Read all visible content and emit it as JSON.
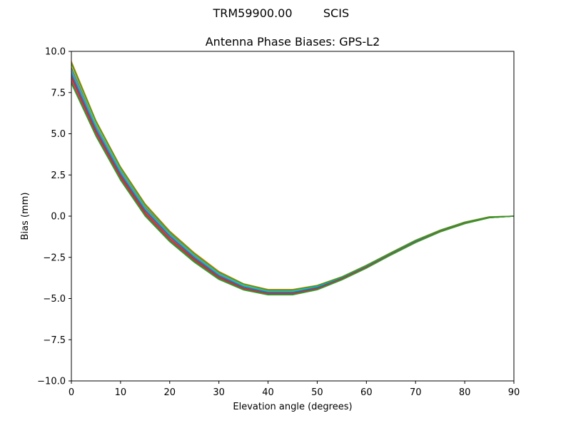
{
  "figure": {
    "suptitle_antenna": "TRM59900.00",
    "suptitle_radome": "SCIS"
  },
  "chart_data": {
    "type": "line",
    "title": "Antenna Phase Biases: GPS-L2",
    "xlabel": "Elevation angle (degrees)",
    "ylabel": "Bias (mm)",
    "xlim": [
      0,
      90
    ],
    "ylim": [
      -10,
      10
    ],
    "xticks": [
      0,
      10,
      20,
      30,
      40,
      50,
      60,
      70,
      80,
      90
    ],
    "xtick_labels": [
      "0",
      "10",
      "20",
      "30",
      "40",
      "50",
      "60",
      "70",
      "80",
      "90"
    ],
    "yticks": [
      10,
      7.5,
      5,
      2.5,
      0,
      -2.5,
      -5,
      -7.5,
      -10
    ],
    "ytick_labels": [
      "10.0",
      "7.5",
      "5.0",
      "2.5",
      "0.0",
      "−2.5",
      "−5.0",
      "−7.5",
      "−10.0"
    ],
    "grid": false,
    "legend": "none",
    "x": [
      0,
      5,
      10,
      15,
      20,
      25,
      30,
      35,
      40,
      45,
      50,
      55,
      60,
      65,
      70,
      75,
      80,
      85,
      90
    ],
    "series": [
      {
        "color": "#2ca02c",
        "values": [
          8.1,
          4.9,
          2.2,
          0.05,
          -1.5,
          -2.75,
          -3.8,
          -4.45,
          -4.75,
          -4.75,
          -4.45,
          -3.85,
          -3.15,
          -2.35,
          -1.6,
          -0.95,
          -0.45,
          -0.1,
          0.0
        ]
      },
      {
        "color": "#d62728",
        "values": [
          8.5,
          5.2,
          2.5,
          0.3,
          -1.25,
          -2.55,
          -3.65,
          -4.32,
          -4.65,
          -4.65,
          -4.35,
          -3.78,
          -3.08,
          -2.3,
          -1.55,
          -0.92,
          -0.42,
          -0.08,
          0.0
        ]
      },
      {
        "color": "#9467bd",
        "values": [
          8.8,
          5.4,
          2.65,
          0.45,
          -1.15,
          -2.45,
          -3.55,
          -4.25,
          -4.6,
          -4.6,
          -4.3,
          -3.75,
          -3.05,
          -2.27,
          -1.52,
          -0.9,
          -0.4,
          -0.07,
          0.0
        ]
      },
      {
        "color": "#8c564b",
        "values": [
          9.0,
          5.55,
          2.8,
          0.55,
          -1.05,
          -2.35,
          -3.47,
          -4.2,
          -4.55,
          -4.55,
          -4.27,
          -3.72,
          -3.02,
          -2.25,
          -1.5,
          -0.88,
          -0.38,
          -0.06,
          0.0
        ]
      },
      {
        "color": "#e377c2",
        "values": [
          8.3,
          5.05,
          2.35,
          0.15,
          -1.4,
          -2.65,
          -3.72,
          -4.4,
          -4.72,
          -4.72,
          -4.42,
          -3.82,
          -3.12,
          -2.33,
          -1.58,
          -0.94,
          -0.44,
          -0.09,
          0.0
        ]
      },
      {
        "color": "#7f7f7f",
        "values": [
          8.7,
          5.3,
          2.6,
          0.4,
          -1.2,
          -2.5,
          -3.6,
          -4.28,
          -4.62,
          -4.62,
          -4.32,
          -3.76,
          -3.06,
          -2.28,
          -1.53,
          -0.91,
          -0.41,
          -0.07,
          0.0
        ]
      },
      {
        "color": "#bcbd22",
        "values": [
          9.2,
          5.65,
          2.9,
          0.65,
          -0.98,
          -2.3,
          -3.42,
          -4.15,
          -4.5,
          -4.5,
          -4.24,
          -3.7,
          -3.0,
          -2.23,
          -1.48,
          -0.86,
          -0.37,
          -0.05,
          0.0
        ]
      },
      {
        "color": "#17becf",
        "values": [
          8.9,
          5.5,
          2.75,
          0.5,
          -1.1,
          -2.4,
          -3.5,
          -4.22,
          -4.57,
          -4.57,
          -4.28,
          -3.73,
          -3.03,
          -2.26,
          -1.51,
          -0.89,
          -0.39,
          -0.06,
          0.0
        ]
      },
      {
        "color": "#1f77b4",
        "values": [
          8.6,
          5.25,
          2.55,
          0.35,
          -1.22,
          -2.52,
          -3.62,
          -4.3,
          -4.63,
          -4.63,
          -4.33,
          -3.77,
          -3.07,
          -2.29,
          -1.54,
          -0.91,
          -0.41,
          -0.08,
          0.0
        ]
      },
      {
        "color": "#ff7f0e",
        "values": [
          9.4,
          5.8,
          3.0,
          0.75,
          -0.9,
          -2.22,
          -3.35,
          -4.1,
          -4.45,
          -4.45,
          -4.2,
          -3.68,
          -2.98,
          -2.21,
          -1.46,
          -0.85,
          -0.36,
          -0.04,
          0.0
        ]
      },
      {
        "color": "#2ca02c",
        "values": [
          9.3,
          5.75,
          2.95,
          0.7,
          -0.95,
          -2.27,
          -3.4,
          -4.12,
          -4.48,
          -4.48,
          -4.22,
          -3.69,
          -2.99,
          -2.22,
          -1.47,
          -0.85,
          -0.36,
          -0.05,
          0.0
        ]
      },
      {
        "color": "#d62728",
        "values": [
          8.4,
          5.1,
          2.4,
          0.2,
          -1.35,
          -2.62,
          -3.7,
          -4.38,
          -4.7,
          -4.7,
          -4.4,
          -3.8,
          -3.1,
          -2.32,
          -1.57,
          -0.93,
          -0.43,
          -0.09,
          0.0
        ]
      },
      {
        "color": "#8c564b",
        "values": [
          8.2,
          4.95,
          2.28,
          0.1,
          -1.45,
          -2.7,
          -3.76,
          -4.43,
          -4.74,
          -4.74,
          -4.44,
          -3.84,
          -3.14,
          -2.34,
          -1.59,
          -0.95,
          -0.45,
          -0.1,
          0.0
        ]
      },
      {
        "color": "#2ca02c",
        "values": [
          8.05,
          4.85,
          2.18,
          0.0,
          -1.55,
          -2.8,
          -3.84,
          -4.48,
          -4.78,
          -4.78,
          -4.47,
          -3.87,
          -3.16,
          -2.36,
          -1.61,
          -0.96,
          -0.46,
          -0.1,
          0.0
        ]
      }
    ]
  }
}
